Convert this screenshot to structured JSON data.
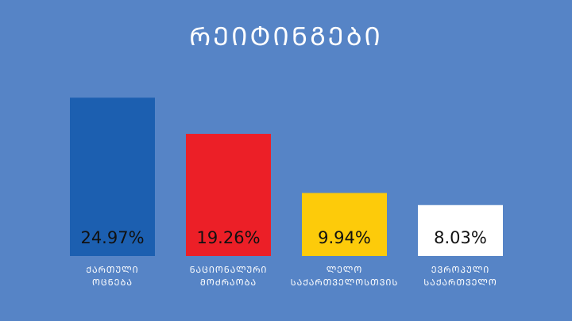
{
  "chart_data": {
    "type": "bar",
    "title": "ᲠᲔᲘᲢᲘᲜᲒᲔᲑᲘ",
    "categories": [
      [
        "ᲥᲐᲠᲗᲣᲚᲘ",
        "ᲝᲪᲜᲔᲑᲐ"
      ],
      [
        "ᲜᲐᲪᲘᲝᲜᲐᲚᲣᲠᲘ",
        "ᲛᲝᲫᲠᲐᲝᲑᲐ"
      ],
      [
        "ᲚᲔᲚᲝ",
        "ᲡᲐᲥᲐᲠᲗᲕᲔᲚᲝᲡᲗᲕᲘᲡ"
      ],
      [
        "ᲔᲕᲠᲝᲞᲣᲚᲘ",
        "ᲡᲐᲥᲐᲠᲗᲕᲔᲚᲝ"
      ]
    ],
    "values": [
      24.97,
      19.26,
      9.94,
      8.03
    ],
    "value_labels": [
      "24.97%",
      "19.26%",
      "9.94%",
      "8.03%"
    ],
    "colors": [
      "#1c5fb0",
      "#ec1f27",
      "#fdcb0a",
      "#ffffff"
    ],
    "ylim": [
      0,
      25
    ]
  }
}
